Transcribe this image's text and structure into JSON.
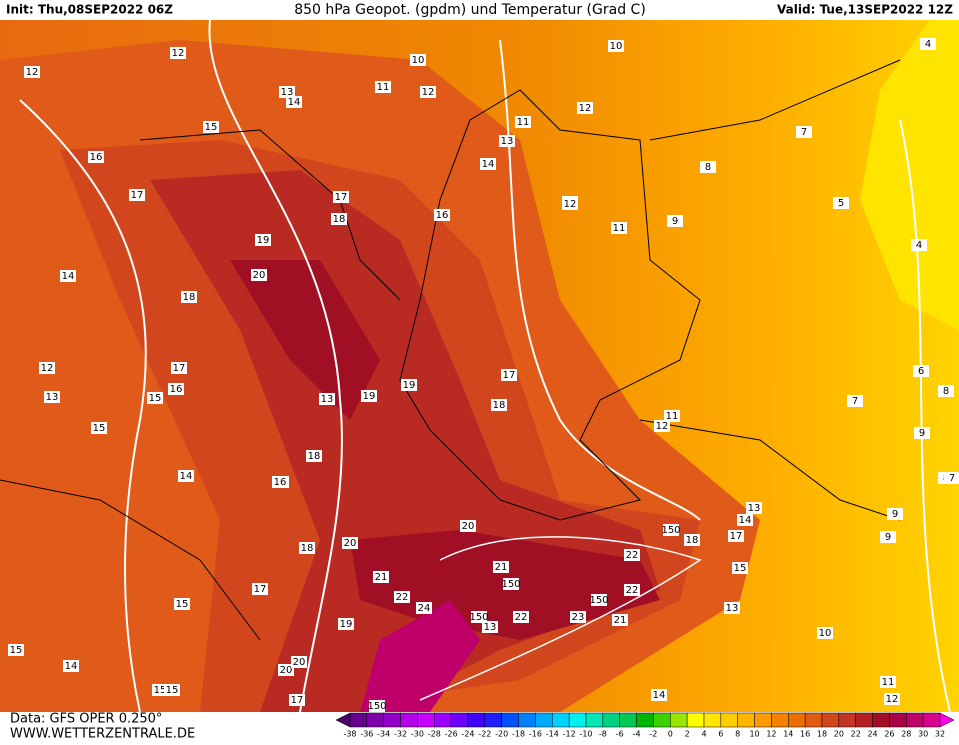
{
  "header": {
    "init": "Init: Thu,08SEP2022 06Z",
    "title": "850 hPa Geopot. (gpdm) und Temperatur (Grad C)",
    "valid": "Valid: Tue,13SEP2022 12Z"
  },
  "footer": {
    "source": "Data: GFS OPER 0.250°",
    "site": "WWW.WETTERZENTRALE.DE"
  },
  "colorbar": {
    "ticks": [
      -38,
      -36,
      -34,
      -32,
      -30,
      -28,
      -26,
      -24,
      -22,
      -20,
      -18,
      -16,
      -14,
      -12,
      -10,
      -8,
      -6,
      -4,
      -2,
      0,
      2,
      4,
      6,
      8,
      10,
      12,
      14,
      16,
      18,
      20,
      22,
      24,
      26,
      28,
      30,
      32
    ],
    "colors": [
      "#4b0064",
      "#64008c",
      "#7d00aa",
      "#9600c8",
      "#b400e6",
      "#c800ff",
      "#9b00ff",
      "#6e00ff",
      "#4100ff",
      "#1e1eff",
      "#0050ff",
      "#0082ff",
      "#00aaff",
      "#00d2ff",
      "#00f0f0",
      "#00e6b4",
      "#00d282",
      "#00c850",
      "#00b400",
      "#3cd200",
      "#96e600",
      "#ffff00",
      "#ffe600",
      "#ffcd00",
      "#ffb400",
      "#ff9b00",
      "#f58200",
      "#eb6e00",
      "#e15a14",
      "#d2461e",
      "#c33223",
      "#b41e23",
      "#a00f23",
      "#aa0046",
      "#be0069",
      "#d7008c",
      "#ff00e6"
    ]
  },
  "labels": [
    10,
    10,
    12,
    12,
    11,
    12,
    14,
    13,
    12,
    11,
    13,
    14,
    15,
    16,
    17,
    17,
    18,
    18,
    16,
    19,
    20,
    14,
    18,
    17,
    16,
    15,
    12,
    13,
    15,
    13,
    19,
    18,
    19,
    17,
    18,
    17,
    14,
    16,
    16,
    18,
    20,
    17,
    15,
    19,
    21,
    22,
    24,
    20,
    20,
    17,
    21,
    20,
    15,
    150,
    150,
    150,
    22,
    22,
    23,
    150,
    21,
    22,
    13,
    15,
    14,
    17,
    18,
    13,
    150,
    13,
    10,
    11,
    12,
    14,
    14,
    15,
    15,
    7,
    8,
    9,
    5,
    4,
    4,
    6,
    8,
    7,
    9,
    9,
    8,
    9,
    7,
    11,
    12,
    12,
    11
  ]
}
